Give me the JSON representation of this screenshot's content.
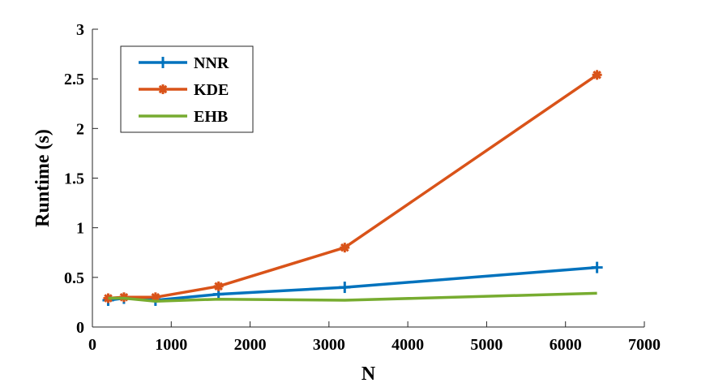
{
  "chart_data": {
    "type": "line",
    "xlabel": "N",
    "ylabel": "Runtime (s)",
    "xlim": [
      0,
      7000
    ],
    "ylim": [
      0,
      3
    ],
    "x_ticks": [
      0,
      1000,
      2000,
      3000,
      4000,
      5000,
      6000,
      7000
    ],
    "y_ticks": [
      0,
      0.5,
      1,
      1.5,
      2,
      2.5,
      3
    ],
    "x_tick_labels": [
      "0",
      "1000",
      "2000",
      "3000",
      "4000",
      "5000",
      "6000",
      "7000"
    ],
    "y_tick_labels": [
      "0",
      "0.5",
      "1",
      "1.5",
      "2",
      "2.5",
      "3"
    ],
    "grid": false,
    "legend_position": "top-left",
    "x": [
      200,
      400,
      800,
      1600,
      3200,
      6400
    ],
    "series": [
      {
        "name": "NNR",
        "color": "#0072BD",
        "marker": "plus",
        "values": [
          0.27,
          0.29,
          0.27,
          0.33,
          0.4,
          0.6
        ]
      },
      {
        "name": "KDE",
        "color": "#D95319",
        "marker": "asterisk",
        "values": [
          0.29,
          0.3,
          0.3,
          0.41,
          0.8,
          2.54
        ]
      },
      {
        "name": "EHB",
        "color": "#77AC30",
        "marker": "none",
        "values": [
          0.29,
          0.29,
          0.26,
          0.28,
          0.27,
          0.34
        ]
      }
    ]
  }
}
